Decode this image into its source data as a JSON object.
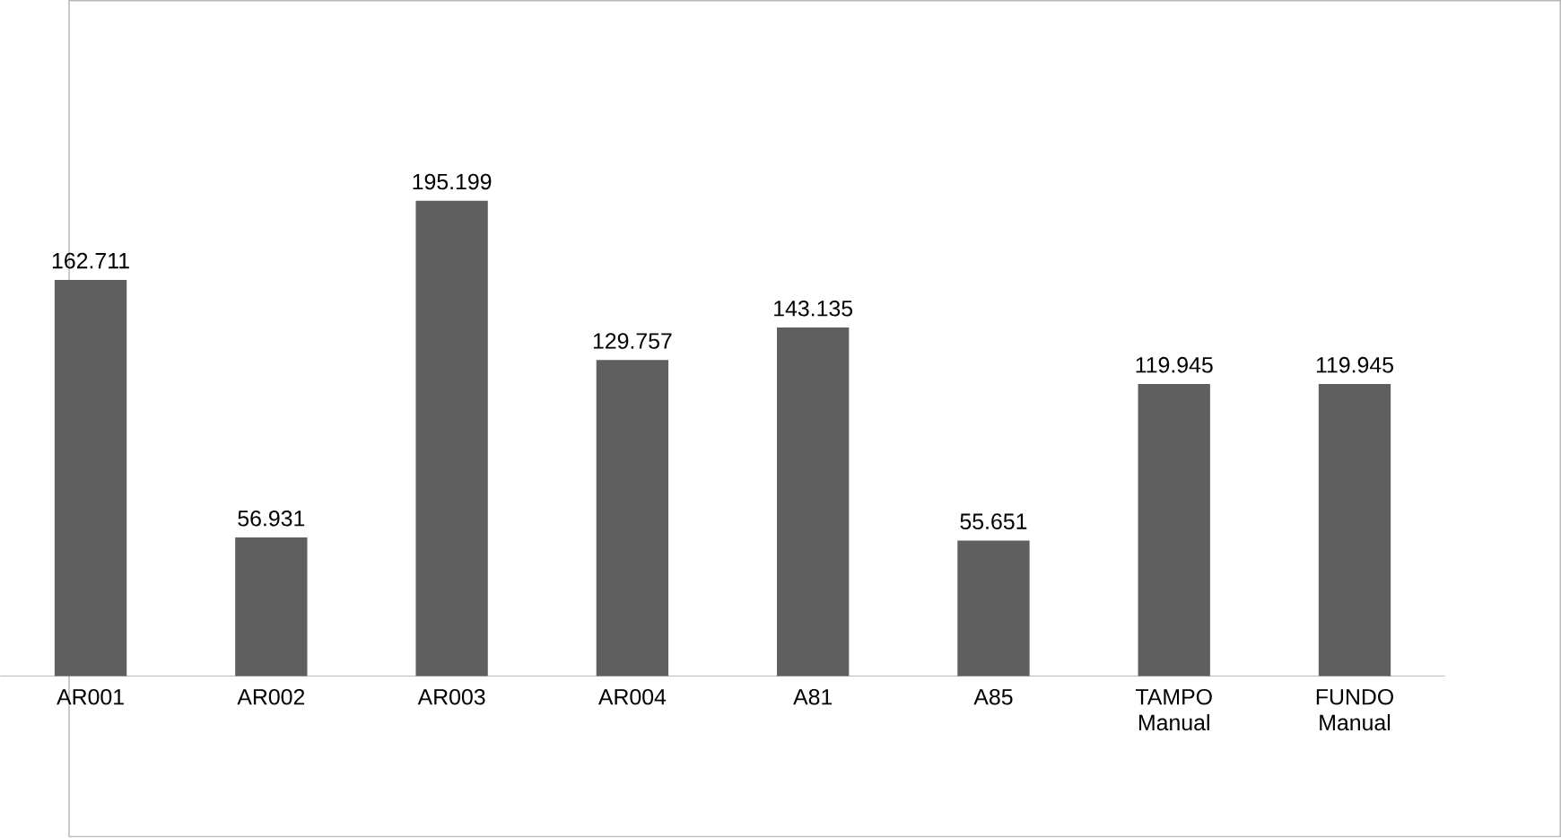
{
  "chart_data": {
    "type": "bar",
    "categories": [
      "AR001",
      "AR002",
      "AR003",
      "AR004",
      "A81",
      "A85",
      "TAMPO Manual",
      "FUNDO Manual"
    ],
    "values": [
      162.711,
      56.931,
      195.199,
      129.757,
      143.135,
      55.651,
      119.945,
      119.945
    ],
    "color": "#5f5f5f",
    "data_labels": true
  }
}
